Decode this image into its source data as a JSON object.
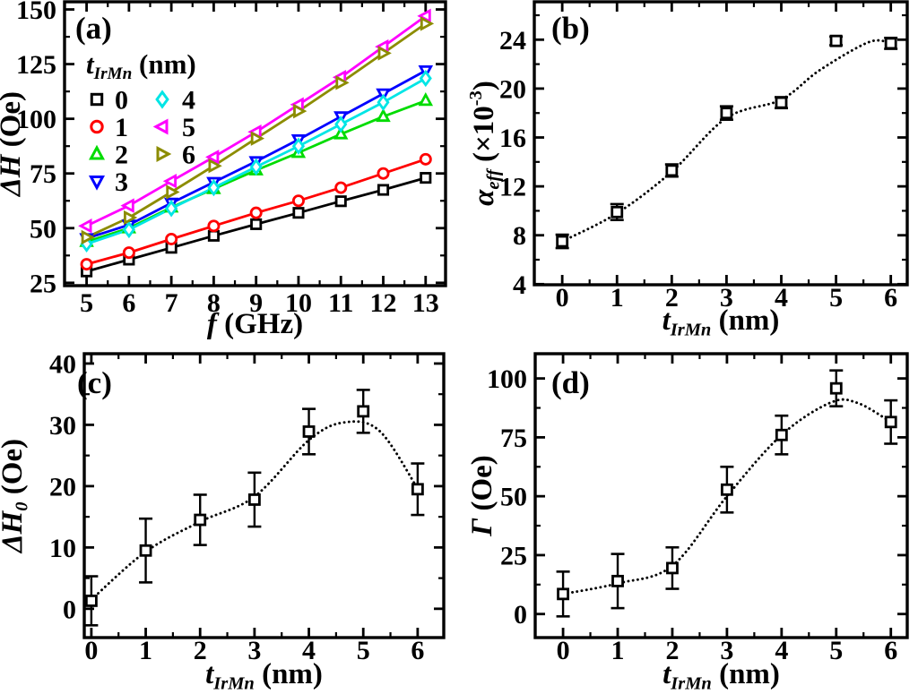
{
  "figure": {
    "background": "#ffffff",
    "text_color": "#000000"
  },
  "chart_data": [
    {
      "id": "a",
      "type": "line",
      "panel_label": "(a)",
      "xlabel_tokens": [
        {
          "text": "f",
          "italic": true
        },
        {
          "text": " (GHz)"
        }
      ],
      "ylabel_tokens": [
        {
          "text": "ΔH",
          "italic": true
        },
        {
          "text": " (Oe)"
        }
      ],
      "x_ticks": [
        5,
        6,
        7,
        8,
        9,
        10,
        11,
        12,
        13
      ],
      "y_ticks": [
        25,
        50,
        75,
        100,
        125,
        150
      ],
      "x_minor_step": 0.5,
      "y_minor_step": 12.5,
      "x_range": [
        4.48,
        13.47
      ],
      "y_range": [
        23.7,
        153.5
      ],
      "x": [
        5,
        6,
        7,
        8,
        9,
        10,
        11,
        12,
        13
      ],
      "series": [
        {
          "name": "0",
          "marker": "square",
          "color": "#000000",
          "values": [
            30.2,
            35.6,
            41.0,
            46.5,
            51.8,
            57.0,
            62.3,
            67.5,
            73.0
          ]
        },
        {
          "name": "1",
          "marker": "circle",
          "color": "#FF0000",
          "values": [
            33.5,
            38.8,
            45.0,
            51.0,
            57.0,
            62.5,
            68.5,
            75.0,
            81.5
          ]
        },
        {
          "name": "2",
          "marker": "triangle-up",
          "color": "#00DC00",
          "values": [
            43.8,
            50.0,
            59.5,
            68.0,
            76.5,
            84.5,
            93.0,
            101.0,
            108.3
          ]
        },
        {
          "name": "3",
          "marker": "triangle-down",
          "color": "#0000FF",
          "values": [
            45.3,
            51.5,
            61.5,
            71.0,
            80.5,
            90.5,
            101.0,
            111.5,
            122.0
          ]
        },
        {
          "name": "4",
          "marker": "diamond",
          "color": "#00E5E5",
          "values": [
            42.8,
            49.3,
            59.0,
            68.5,
            78.0,
            87.5,
            97.5,
            107.5,
            118.5
          ]
        },
        {
          "name": "5",
          "marker": "triangle-left",
          "color": "#FF00FF",
          "values": [
            51.0,
            60.3,
            71.5,
            82.5,
            94.0,
            106.5,
            119.0,
            133.0,
            147.0
          ]
        },
        {
          "name": "6",
          "marker": "triangle-right",
          "color": "#8C8C00",
          "values": [
            45.8,
            54.8,
            66.5,
            78.5,
            91.0,
            103.5,
            116.5,
            130.0,
            143.5
          ]
        }
      ],
      "legend": {
        "title_tokens": [
          {
            "text": "t",
            "italic": true
          },
          {
            "text": "IrMn",
            "italic": true,
            "script": "sub"
          },
          {
            "text": " (nm)"
          }
        ],
        "columns": [
          [
            {
              "marker": "square",
              "color": "#000000",
              "label": "0"
            },
            {
              "marker": "circle",
              "color": "#FF0000",
              "label": "1"
            },
            {
              "marker": "triangle-up",
              "color": "#00DC00",
              "label": "2"
            },
            {
              "marker": "triangle-down",
              "color": "#0000FF",
              "label": "3"
            }
          ],
          [
            {
              "marker": "diamond",
              "color": "#00E5E5",
              "label": "4"
            },
            {
              "marker": "triangle-left",
              "color": "#FF00FF",
              "label": "5"
            },
            {
              "marker": "triangle-right",
              "color": "#8C8C00",
              "label": "6"
            }
          ]
        ]
      }
    },
    {
      "id": "b",
      "type": "scatter-errorbar",
      "panel_label": "(b)",
      "xlabel_tokens": [
        {
          "text": "t",
          "italic": true
        },
        {
          "text": "IrMn",
          "italic": true,
          "script": "sub"
        },
        {
          "text": " (nm)"
        }
      ],
      "ylabel_tokens": [
        {
          "text": "α",
          "italic": true
        },
        {
          "text": "eff",
          "italic": true,
          "script": "sub"
        },
        {
          "text": " (×10"
        },
        {
          "text": "-3",
          "script": "sup"
        },
        {
          "text": ")"
        }
      ],
      "x_ticks": [
        0,
        1,
        2,
        3,
        4,
        5,
        6
      ],
      "y_ticks": [
        4,
        8,
        12,
        16,
        20,
        24
      ],
      "x_minor_step": 0.5,
      "y_minor_step": 2,
      "x_range": [
        -0.51,
        6.3
      ],
      "y_range": [
        3.95,
        27.1
      ],
      "points": {
        "x": [
          0,
          1,
          2,
          3,
          4,
          5,
          6
        ],
        "y": [
          7.5,
          9.9,
          13.3,
          18.0,
          18.85,
          23.9,
          23.7
        ],
        "yerr": [
          0.55,
          0.65,
          0.5,
          0.55,
          0.45,
          0.35,
          0.45
        ]
      },
      "marker": "square",
      "marker_color": "#000000",
      "trend": [
        [
          0,
          7.5
        ],
        [
          1,
          9.8
        ],
        [
          2,
          13.2
        ],
        [
          3,
          17.6
        ],
        [
          4,
          19.1
        ],
        [
          4.7,
          21.5
        ],
        [
          5.6,
          23.8
        ],
        [
          6,
          23.7
        ]
      ]
    },
    {
      "id": "c",
      "type": "scatter-errorbar",
      "panel_label": "(c)",
      "xlabel_tokens": [
        {
          "text": "t",
          "italic": true
        },
        {
          "text": "IrMn",
          "italic": true,
          "script": "sub"
        },
        {
          "text": " (nm)"
        }
      ],
      "ylabel_tokens": [
        {
          "text": "ΔH",
          "italic": true
        },
        {
          "text": "0",
          "italic": true,
          "script": "sub"
        },
        {
          "text": " (Oe)"
        }
      ],
      "x_ticks": [
        0,
        1,
        2,
        3,
        4,
        5,
        6
      ],
      "y_ticks": [
        0,
        10,
        20,
        30,
        40
      ],
      "x_minor_step": 0.5,
      "y_minor_step": 5,
      "x_range": [
        -0.13,
        6.48
      ],
      "y_range": [
        -4.7,
        41.6
      ],
      "points": {
        "x": [
          0,
          1,
          2,
          3,
          4,
          5,
          6
        ],
        "y": [
          1.3,
          9.5,
          14.5,
          17.8,
          28.9,
          32.2,
          19.5
        ],
        "yerr": [
          4.0,
          5.2,
          4.1,
          4.4,
          3.7,
          3.5,
          4.2
        ]
      },
      "marker": "square",
      "marker_color": "#000000",
      "trend": [
        [
          0,
          1.5
        ],
        [
          1,
          9.3
        ],
        [
          2,
          14.2
        ],
        [
          3,
          18.3
        ],
        [
          4,
          27.5
        ],
        [
          4.65,
          30.4
        ],
        [
          5.3,
          29.0
        ],
        [
          6,
          19.6
        ]
      ]
    },
    {
      "id": "d",
      "type": "scatter-errorbar",
      "panel_label": "(d)",
      "xlabel_tokens": [
        {
          "text": "t",
          "italic": true
        },
        {
          "text": "IrMn",
          "italic": true,
          "script": "sub"
        },
        {
          "text": " (nm)"
        }
      ],
      "ylabel_tokens": [
        {
          "text": "Γ",
          "italic": true
        },
        {
          "text": " (Oe)"
        }
      ],
      "x_ticks": [
        0,
        1,
        2,
        3,
        4,
        5,
        6
      ],
      "y_ticks": [
        0,
        25,
        50,
        75,
        100
      ],
      "x_minor_step": 0.5,
      "y_minor_step": 12.5,
      "x_range": [
        -0.51,
        6.3
      ],
      "y_range": [
        -10,
        110.5
      ],
      "points": {
        "x": [
          0,
          1,
          2,
          3,
          4,
          5,
          6
        ],
        "y": [
          8.5,
          14.0,
          19.5,
          52.8,
          76.0,
          95.8,
          81.5
        ],
        "yerr": [
          9.5,
          11.5,
          8.8,
          9.7,
          8.2,
          7.6,
          9.2
        ]
      },
      "marker": "square",
      "marker_color": "#000000",
      "trend": [
        [
          0,
          8.5
        ],
        [
          1,
          13.0
        ],
        [
          2,
          20.5
        ],
        [
          3,
          50.0
        ],
        [
          4,
          76.0
        ],
        [
          4.9,
          89.8
        ],
        [
          5.4,
          89.5
        ],
        [
          6,
          81.5
        ]
      ]
    }
  ]
}
